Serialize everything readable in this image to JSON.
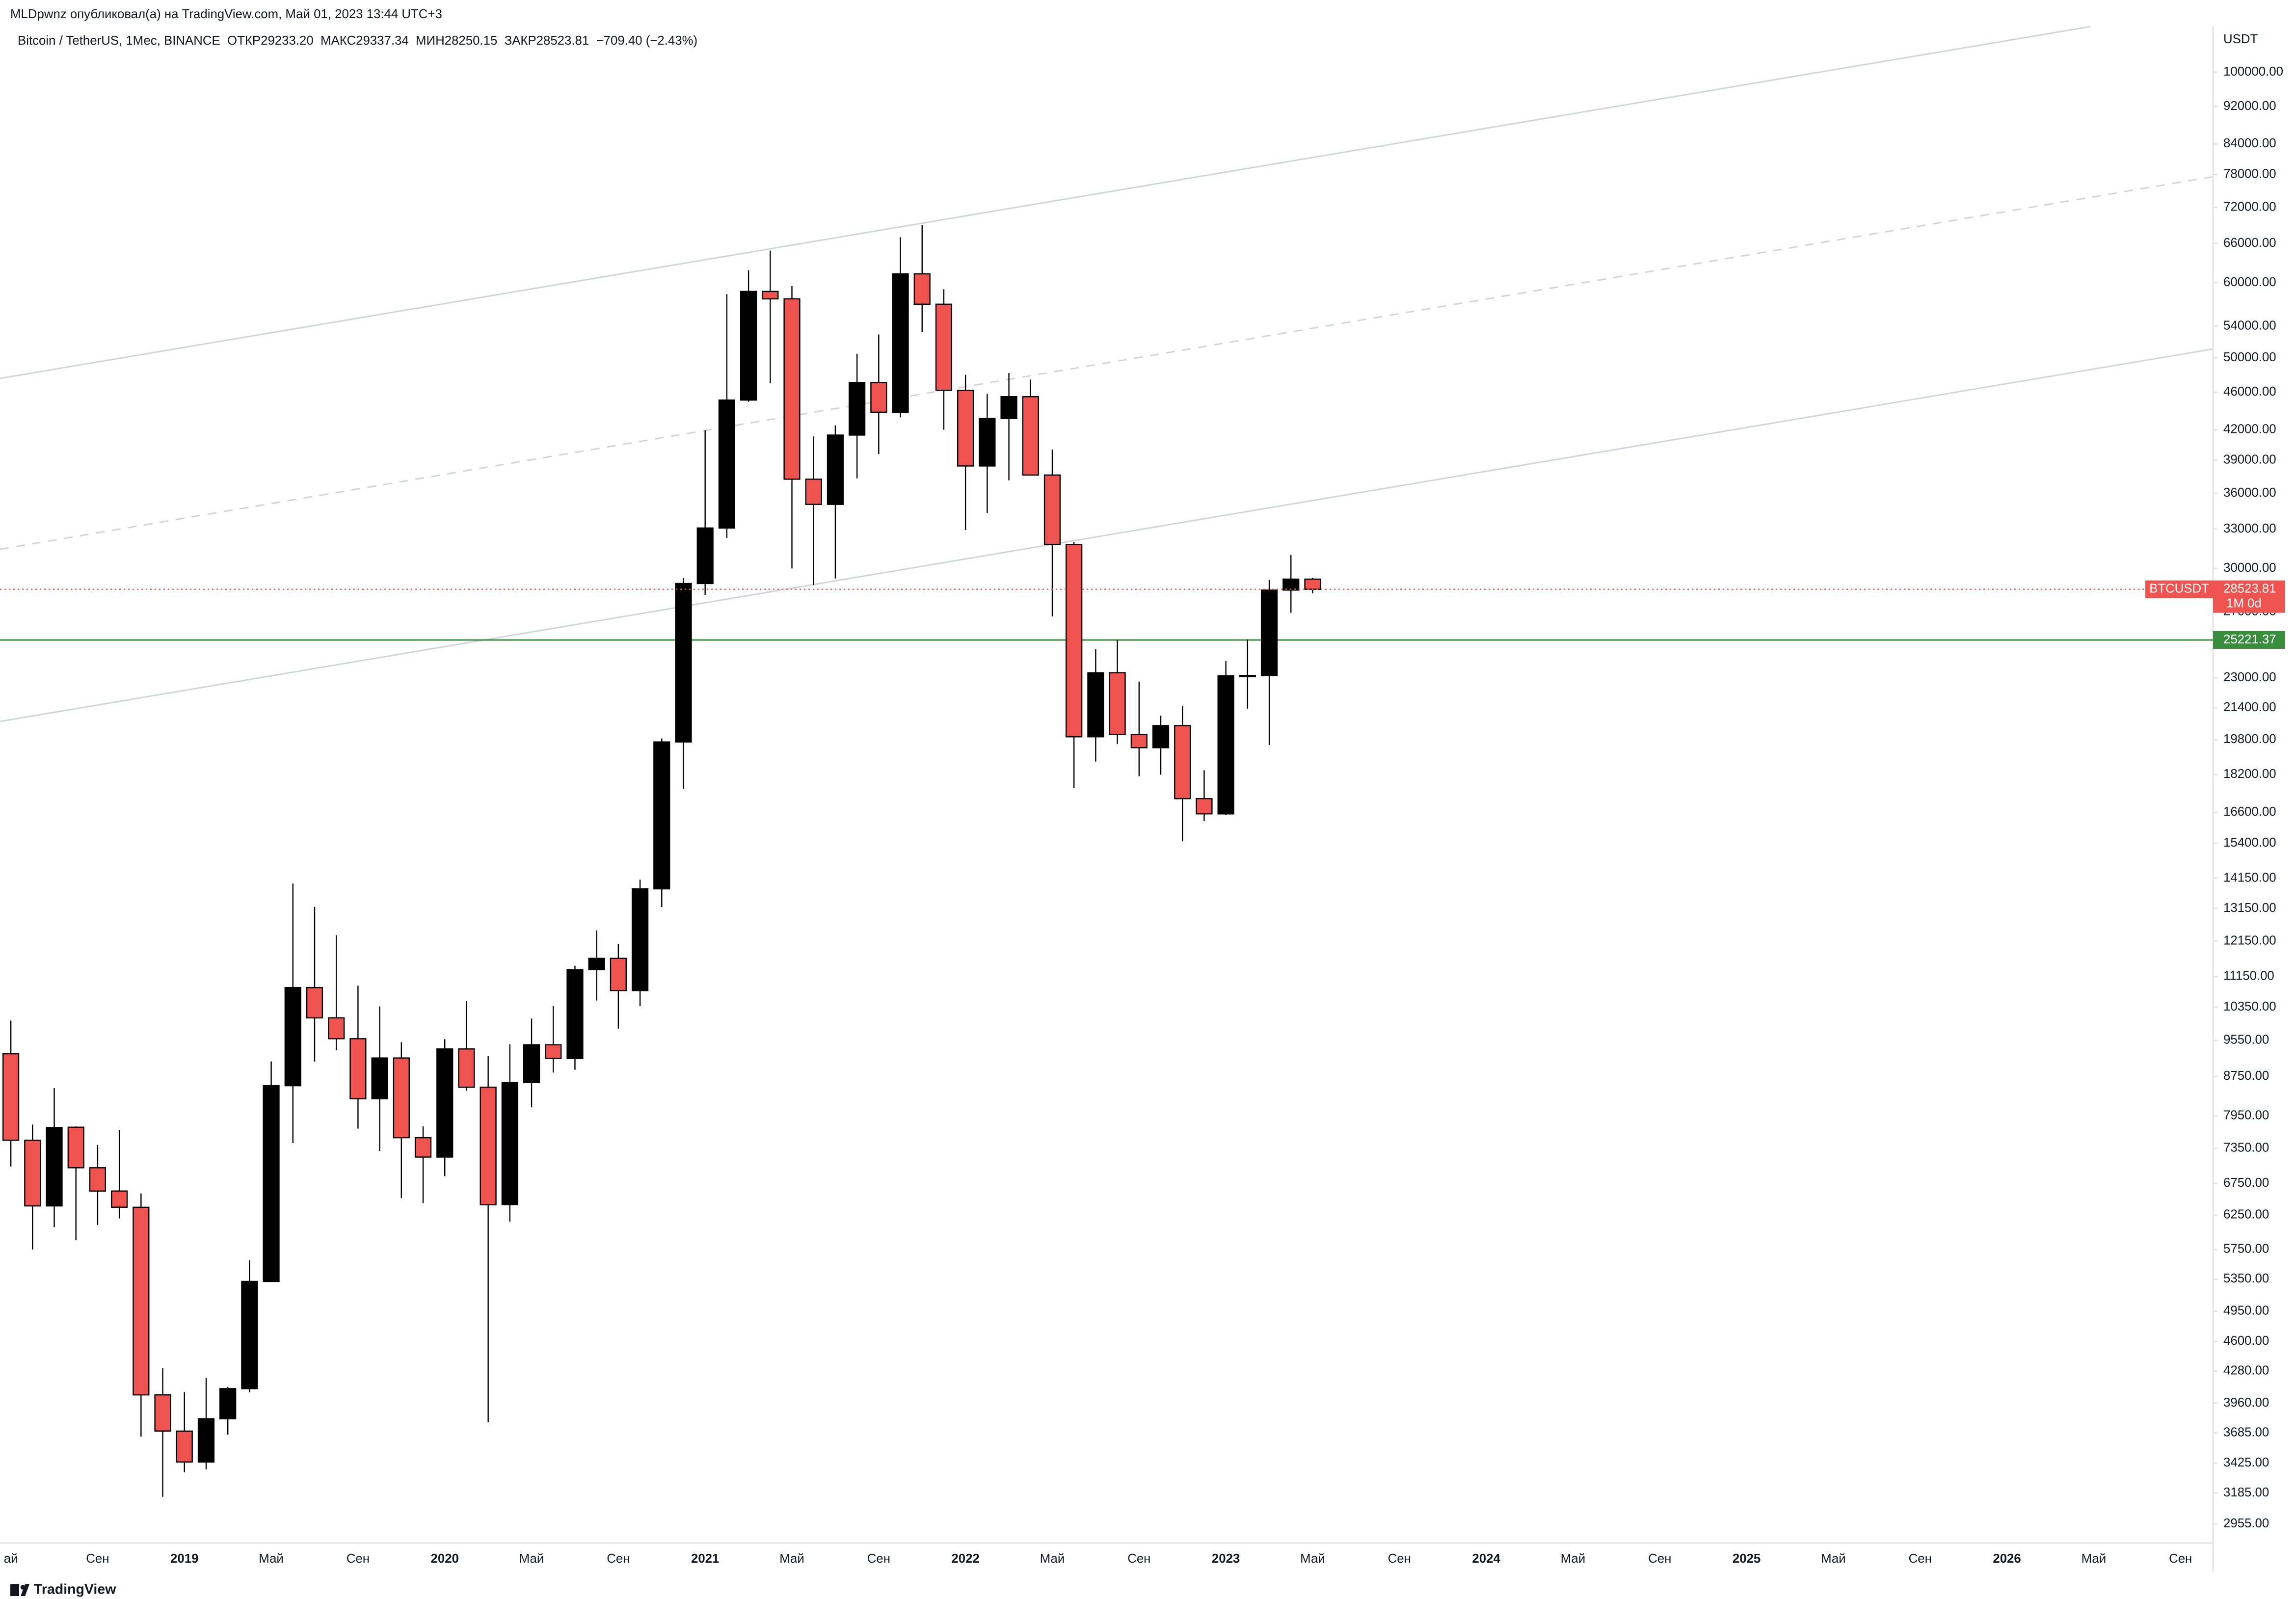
{
  "chart_data": {
    "type": "candlestick",
    "header": "MLDpwnz опубликовал(а) на TradingView.com, Май 01, 2023 13:44 UTC+3",
    "title": "Bitcoin / TetherUS, 1Мес, BINANCE  ОТКР29233.20  МАКС29337.34  МИН28250.15  ЗАКР28523.81  −709.40 (−2.43%)",
    "y_unit": "USDT",
    "symbol": "BTCUSDT",
    "countdown": "1M 0d",
    "footer": "TradingView",
    "x": [
      "2018-05",
      "2018-06",
      "2018-07",
      "2018-08",
      "2018-09",
      "2018-10",
      "2018-11",
      "2018-12",
      "2019-01",
      "2019-02",
      "2019-03",
      "2019-04",
      "2019-05",
      "2019-06",
      "2019-07",
      "2019-08",
      "2019-09",
      "2019-10",
      "2019-11",
      "2019-12",
      "2020-01",
      "2020-02",
      "2020-03",
      "2020-04",
      "2020-05",
      "2020-06",
      "2020-07",
      "2020-08",
      "2020-09",
      "2020-10",
      "2020-11",
      "2020-12",
      "2021-01",
      "2021-02",
      "2021-03",
      "2021-04",
      "2021-05",
      "2021-06",
      "2021-07",
      "2021-08",
      "2021-09",
      "2021-10",
      "2021-11",
      "2021-12",
      "2022-01",
      "2022-02",
      "2022-03",
      "2022-04",
      "2022-05",
      "2022-06",
      "2022-07",
      "2022-08",
      "2022-09",
      "2022-10",
      "2022-11",
      "2022-12",
      "2023-01",
      "2023-02",
      "2023-03",
      "2023-04",
      "2023-05"
    ],
    "open": [
      9244,
      7494,
      6391,
      7735,
      7011,
      6626,
      6370,
      4041,
      3701,
      3434,
      3814,
      4103,
      5321,
      8555,
      10854,
      10085,
      9588,
      8289,
      9150,
      7541,
      7195,
      9352,
      8523,
      6412,
      8620,
      9448,
      9138,
      11335,
      11650,
      10776,
      13791,
      19695,
      28923,
      33092,
      45134,
      58739,
      57697,
      37253,
      35045,
      41461,
      47100,
      43820,
      61300,
      56951,
      46217,
      38466,
      43160,
      45510,
      37631,
      31801,
      19942,
      23297,
      20049,
      19423,
      20491,
      17165,
      16541,
      23125,
      23141,
      28465,
      29233.2
    ],
    "high": [
      10020,
      7786,
      8507,
      7750,
      7410,
      7680,
      6588,
      4312,
      4069,
      4210,
      4121,
      5600,
      9074,
      13970,
      13200,
      12325,
      10905,
      10370,
      9505,
      7750,
      9578,
      10500,
      9188,
      9460,
      10067,
      10380,
      11444,
      12468,
      12067,
      14100,
      19863,
      29300,
      41950,
      58352,
      61844,
      64854,
      59500,
      41330,
      42448,
      50500,
      52920,
      67000,
      69000,
      59053,
      47990,
      45821,
      48190,
      47444,
      40023,
      31986,
      24668,
      25212,
      22800,
      20988,
      21480,
      18388,
      23960,
      25250,
      29185,
      31000,
      29337.34
    ],
    "low": [
      7032,
      5750,
      6070,
      5880,
      6100,
      6200,
      3652,
      3156,
      3349,
      3373,
      3670,
      4067,
      5320,
      7444,
      9071,
      9320,
      7710,
      7300,
      6515,
      6435,
      6871,
      8450,
      3782,
      6150,
      8117,
      8833,
      8893,
      10518,
      9825,
      10375,
      13195,
      17572,
      28130,
      32296,
      44950,
      47000,
      30000,
      28805,
      29278,
      37332,
      39600,
      43283,
      53256,
      42000,
      32917,
      34322,
      37155,
      37578,
      26700,
      17622,
      18781,
      19600,
      18125,
      18190,
      15476,
      16256,
      16499,
      21351,
      19549,
      26942,
      28250.15
    ],
    "close": [
      7494,
      6391,
      7730,
      7011,
      6626,
      6371,
      4041,
      3702,
      3434,
      3814,
      4103,
      5321,
      8555,
      10854,
      10085,
      9588,
      8289,
      9150,
      7541,
      7195,
      9352,
      8523,
      6410,
      8620,
      9448,
      9138,
      11335,
      11650,
      10776,
      13791,
      19695,
      28923,
      33092,
      45135,
      58740,
      57694,
      37253,
      35045,
      41461,
      47100,
      43824,
      61299,
      56950,
      46217,
      38466,
      43160,
      45510,
      37630,
      31801,
      19942,
      23293,
      20050,
      19423,
      20491,
      17164,
      16542,
      23125,
      23141,
      28465,
      29233.2,
      28523.81
    ],
    "up_color": "#000000",
    "down_color": "#ef5350",
    "last_price_color": "#ef5350",
    "level": {
      "value": 25221.37,
      "color": "#388e3c"
    },
    "log_scale": true,
    "grid": false,
    "ylim": [
      2821,
      111700
    ],
    "yticks": [
      {
        "value": 100000,
        "label": "100000.00"
      },
      {
        "value": 92000,
        "label": "92000.00"
      },
      {
        "value": 84000,
        "label": "84000.00"
      },
      {
        "value": 78000,
        "label": "78000.00"
      },
      {
        "value": 72000,
        "label": "72000.00"
      },
      {
        "value": 66000,
        "label": "66000.00"
      },
      {
        "value": 60000,
        "label": "60000.00"
      },
      {
        "value": 54000,
        "label": "54000.00"
      },
      {
        "value": 50000,
        "label": "50000.00"
      },
      {
        "value": 46000,
        "label": "46000.00"
      },
      {
        "value": 42000,
        "label": "42000.00"
      },
      {
        "value": 39000,
        "label": "39000.00"
      },
      {
        "value": 36000,
        "label": "36000.00"
      },
      {
        "value": 33000,
        "label": "33000.00"
      },
      {
        "value": 30000,
        "label": "30000.00"
      },
      {
        "value": 27000,
        "label": "27000.00"
      },
      {
        "value": 23000,
        "label": "23000.00"
      },
      {
        "value": 21400,
        "label": "21400.00"
      },
      {
        "value": 19800,
        "label": "19800.00"
      },
      {
        "value": 18200,
        "label": "18200.00"
      },
      {
        "value": 16600,
        "label": "16600.00"
      },
      {
        "value": 15400,
        "label": "15400.00"
      },
      {
        "value": 14150,
        "label": "14150.00"
      },
      {
        "value": 13150,
        "label": "13150.00"
      },
      {
        "value": 12150,
        "label": "12150.00"
      },
      {
        "value": 11150,
        "label": "11150.00"
      },
      {
        "value": 10350,
        "label": "10350.00"
      },
      {
        "value": 9550,
        "label": "9550.00"
      },
      {
        "value": 8750,
        "label": "8750.00"
      },
      {
        "value": 7950,
        "label": "7950.00"
      },
      {
        "value": 7350,
        "label": "7350.00"
      },
      {
        "value": 6750,
        "label": "6750.00"
      },
      {
        "value": 6250,
        "label": "6250.00"
      },
      {
        "value": 5750,
        "label": "5750.00"
      },
      {
        "value": 5350,
        "label": "5350.00"
      },
      {
        "value": 4950,
        "label": "4950.00"
      },
      {
        "value": 4600,
        "label": "4600.00"
      },
      {
        "value": 4280,
        "label": "4280.00"
      },
      {
        "value": 3960,
        "label": "3960.00"
      },
      {
        "value": 3685,
        "label": "3685.00"
      },
      {
        "value": 3425,
        "label": "3425.00"
      },
      {
        "value": 3185,
        "label": "3185.00"
      },
      {
        "value": 2955,
        "label": "2955.00"
      }
    ],
    "xlim": [
      "2018-05",
      "2026-10"
    ],
    "xticks": [
      {
        "value": "2018-05",
        "label": "ай"
      },
      {
        "value": "2018-09",
        "label": "Сен"
      },
      {
        "value": "2019-01",
        "label": "2019"
      },
      {
        "value": "2019-05",
        "label": "Май"
      },
      {
        "value": "2019-09",
        "label": "Сен"
      },
      {
        "value": "2020-01",
        "label": "2020"
      },
      {
        "value": "2020-05",
        "label": "Май"
      },
      {
        "value": "2020-09",
        "label": "Сен"
      },
      {
        "value": "2021-01",
        "label": "2021"
      },
      {
        "value": "2021-05",
        "label": "Май"
      },
      {
        "value": "2021-09",
        "label": "Сен"
      },
      {
        "value": "2022-01",
        "label": "2022"
      },
      {
        "value": "2022-05",
        "label": "Май"
      },
      {
        "value": "2022-09",
        "label": "Сен"
      },
      {
        "value": "2023-01",
        "label": "2023"
      },
      {
        "value": "2023-05",
        "label": "Май"
      },
      {
        "value": "2023-09",
        "label": "Сен"
      },
      {
        "value": "2024-01",
        "label": "2024"
      },
      {
        "value": "2024-05",
        "label": "Май"
      },
      {
        "value": "2024-09",
        "label": "Сен"
      },
      {
        "value": "2025-01",
        "label": "2025"
      },
      {
        "value": "2025-05",
        "label": "Май"
      },
      {
        "value": "2025-09",
        "label": "Сен"
      },
      {
        "value": "2026-01",
        "label": "2026"
      },
      {
        "value": "2026-05",
        "label": "Май"
      },
      {
        "value": "2026-09",
        "label": "Сен"
      }
    ]
  }
}
